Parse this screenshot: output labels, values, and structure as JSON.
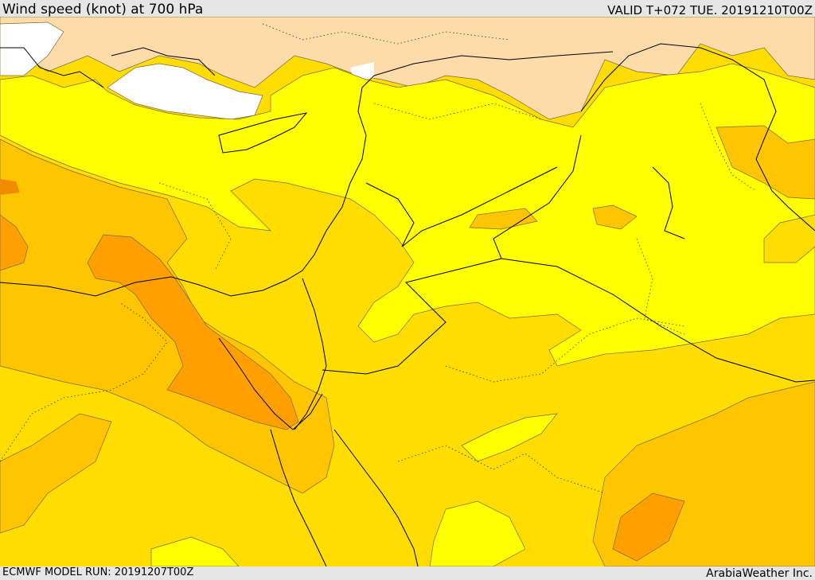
{
  "header": {
    "title": "Wind speed (knot) at 700 hPa",
    "valid": "VALID T+072 TUE. 20191210T00Z"
  },
  "footer": {
    "model_run": "ECMWF MODEL RUN: 20191207T00Z",
    "credit": "ArabiaWeather Inc."
  },
  "palette": {
    "calm": "#ffffff",
    "light": "#fddcaa",
    "yellow": "#ffff00",
    "gold": "#ffdd00",
    "amber": "#ffc500",
    "orange": "#ffa000",
    "dark_orange": "#f08c00",
    "border": "#000000",
    "contour": "#7a6a3a"
  }
}
